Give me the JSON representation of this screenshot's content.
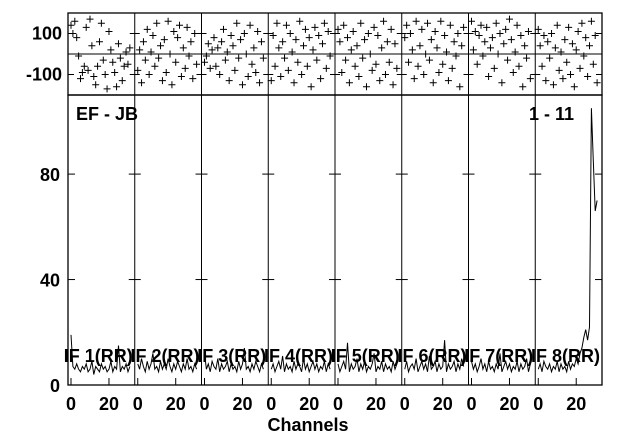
{
  "chart_data": {
    "type": "line",
    "title": "",
    "baseline": "EF - JB",
    "time_range": "1 - 11",
    "xlabel": "Channels",
    "xlim": [
      0,
      32
    ],
    "x_ticks": [
      0,
      20
    ],
    "amplitude": {
      "ylim": [
        0,
        110
      ],
      "y_ticks": [
        0,
        40,
        80
      ],
      "y_tick_labels": [
        "0",
        "40",
        "80"
      ]
    },
    "phase": {
      "ylim": [
        -200,
        200
      ],
      "y_ticks": [
        100,
        -100
      ],
      "y_tick_labels": [
        "100",
        "-100"
      ]
    },
    "panels": [
      {
        "label": "IF 1(RR)",
        "amplitude": [
          19,
          7,
          6,
          8,
          6,
          5,
          7,
          6,
          8,
          5,
          6,
          9,
          4,
          7,
          6,
          5,
          8,
          6,
          7,
          5,
          6,
          9,
          5,
          7,
          6,
          15,
          5,
          7,
          6,
          8,
          5,
          7
        ],
        "phase": [
          140,
          100,
          160,
          80,
          -10,
          -120,
          -90,
          -60,
          130,
          -80,
          170,
          40,
          -110,
          -150,
          -60,
          60,
          150,
          -30,
          -100,
          -170,
          110,
          20,
          -40,
          -90,
          -160,
          50,
          -20,
          -130,
          -60,
          10,
          -50,
          30
        ]
      },
      {
        "label": "IF 2(RR)",
        "amplitude": [
          8,
          6,
          10,
          7,
          5,
          9,
          6,
          8,
          12,
          6,
          7,
          5,
          9,
          6,
          8,
          6,
          10,
          7,
          5,
          8,
          6,
          9,
          7,
          5,
          8,
          6,
          10,
          6,
          7,
          5,
          8,
          6
        ],
        "phase": [
          -80,
          20,
          -140,
          60,
          -30,
          120,
          -100,
          10,
          90,
          -60,
          150,
          -20,
          40,
          -130,
          70,
          -90,
          160,
          0,
          -150,
          110,
          -40,
          80,
          140,
          -110,
          30,
          -70,
          130,
          -10,
          60,
          -120,
          100,
          -50
        ]
      },
      {
        "label": "IF 3(RR)",
        "amplitude": [
          12,
          6,
          8,
          5,
          9,
          7,
          6,
          10,
          5,
          8,
          6,
          7,
          9,
          5,
          8,
          6,
          7,
          5,
          9,
          6,
          8,
          14,
          6,
          7,
          5,
          8,
          6,
          9,
          7,
          5,
          8,
          6
        ],
        "phase": [
          -40,
          -10,
          50,
          -70,
          20,
          80,
          -60,
          30,
          -100,
          60,
          120,
          -30,
          10,
          -130,
          90,
          40,
          -80,
          150,
          -20,
          70,
          -150,
          100,
          0,
          -110,
          140,
          -50,
          30,
          -90,
          110,
          -140,
          60,
          -20
        ]
      },
      {
        "label": "IF 4(RR)",
        "amplitude": [
          6,
          8,
          5,
          7,
          9,
          6,
          11,
          5,
          8,
          6,
          7,
          5,
          9,
          6,
          8,
          7,
          5,
          10,
          6,
          8,
          5,
          7,
          9,
          6,
          8,
          5,
          7,
          6,
          9,
          5,
          8,
          6
        ],
        "phase": [
          -130,
          90,
          -60,
          150,
          30,
          -110,
          60,
          -20,
          140,
          -80,
          100,
          10,
          -140,
          70,
          -40,
          160,
          -100,
          40,
          120,
          -60,
          80,
          -160,
          20,
          130,
          -30,
          90,
          -120,
          50,
          150,
          -70,
          110,
          -10
        ]
      },
      {
        "label": "IF 5(RR)",
        "amplitude": [
          8,
          5,
          7,
          9,
          6,
          16,
          5,
          8,
          6,
          7,
          10,
          5,
          8,
          6,
          9,
          5,
          7,
          6,
          8,
          12,
          5,
          7,
          6,
          9,
          5,
          8,
          6,
          7,
          5,
          9,
          6,
          8
        ],
        "phase": [
          120,
          60,
          -90,
          140,
          -30,
          80,
          -140,
          20,
          110,
          -60,
          40,
          -110,
          150,
          -20,
          70,
          -160,
          100,
          0,
          -80,
          130,
          -50,
          90,
          -130,
          30,
          160,
          -100,
          60,
          -40,
          120,
          -150,
          50,
          -70
        ]
      },
      {
        "label": "IF 6(RR)",
        "amplitude": [
          6,
          9,
          5,
          7,
          8,
          6,
          10,
          5,
          7,
          9,
          6,
          8,
          5,
          11,
          6,
          7,
          9,
          5,
          8,
          6,
          7,
          17,
          5,
          8,
          6,
          7,
          9,
          5,
          8,
          6,
          10,
          7
        ],
        "phase": [
          80,
          140,
          -40,
          100,
          20,
          -120,
          160,
          -60,
          40,
          120,
          -100,
          0,
          150,
          -30,
          70,
          -140,
          110,
          30,
          -90,
          160,
          -50,
          90,
          10,
          -130,
          140,
          -70,
          60,
          -10,
          100,
          -160,
          40,
          130
        ]
      },
      {
        "label": "IF 7(RR)",
        "amplitude": [
          9,
          6,
          8,
          5,
          7,
          10,
          6,
          8,
          5,
          9,
          6,
          7,
          5,
          8,
          6,
          12,
          5,
          7,
          9,
          6,
          8,
          5,
          7,
          6,
          9,
          5,
          8,
          6,
          7,
          10,
          5,
          8
        ],
        "phase": [
          160,
          20,
          110,
          -50,
          90,
          140,
          -10,
          60,
          130,
          -110,
          30,
          80,
          -70,
          150,
          0,
          100,
          -140,
          50,
          120,
          -30,
          170,
          70,
          -90,
          10,
          140,
          -60,
          90,
          -160,
          40,
          -20,
          110,
          -120
        ]
      },
      {
        "label": "IF 8(RR)",
        "amplitude": [
          6,
          8,
          5,
          9,
          7,
          6,
          8,
          5,
          7,
          6,
          9,
          5,
          8,
          6,
          7,
          5,
          9,
          6,
          8,
          7,
          10,
          8,
          12,
          14,
          18,
          21,
          17,
          22,
          105,
          85,
          66,
          70
        ],
        "phase": [
          120,
          40,
          -60,
          90,
          -130,
          60,
          -20,
          100,
          -150,
          30,
          140,
          -80,
          10,
          -120,
          70,
          -40,
          130,
          -100,
          50,
          -160,
          20,
          110,
          -70,
          150,
          -10,
          80,
          -110,
          40,
          160,
          -50,
          90,
          -140
        ]
      }
    ]
  }
}
